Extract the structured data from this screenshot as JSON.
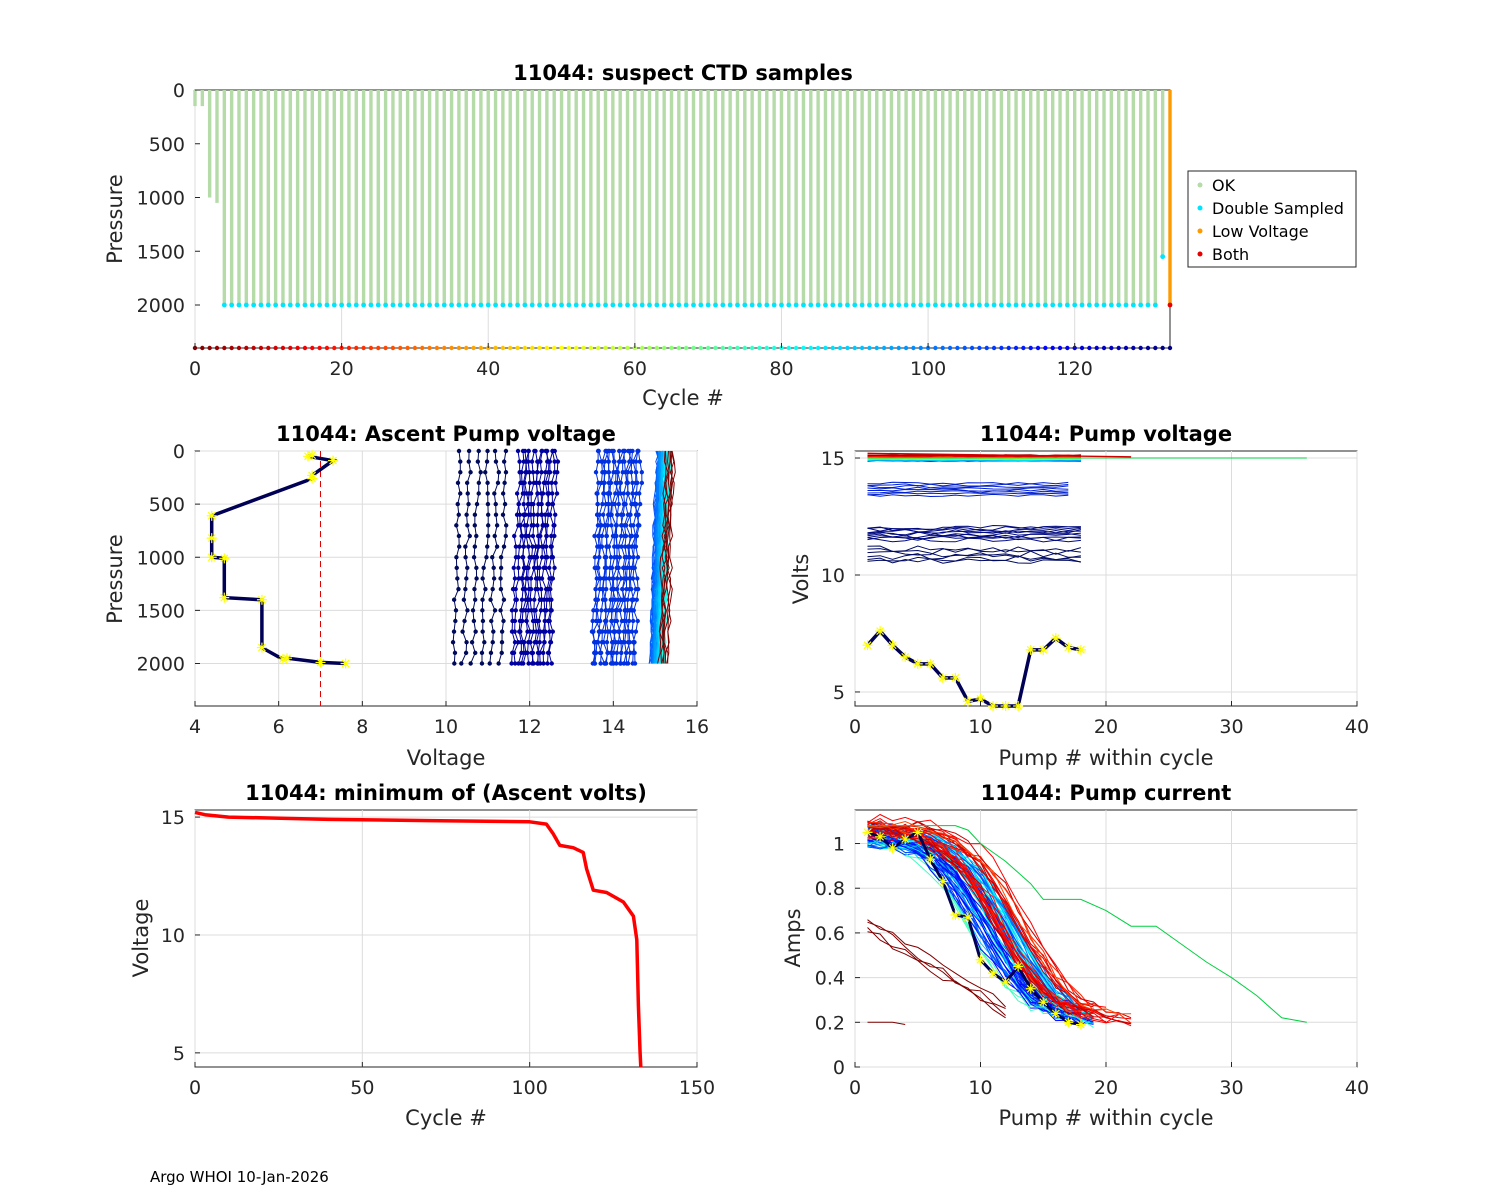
{
  "footer": "Argo WHOI 10-Jan-2026",
  "colors": {
    "ok": "#b5dba9",
    "double": "#00e5ff",
    "low": "#ff9900",
    "both": "#e60000",
    "min_line": "#ff0000",
    "star": "#ffff00",
    "dark": "#000055"
  },
  "chart_data": [
    {
      "id": "suspect",
      "type": "scatter",
      "title": "11044: suspect CTD samples",
      "xlabel": "Cycle #",
      "ylabel": "Pressure",
      "xlim": [
        0,
        133
      ],
      "ylim": [
        2400,
        0
      ],
      "xticks": [
        "0",
        "20",
        "40",
        "60",
        "80",
        "100",
        "120"
      ],
      "xtick_values": [
        0,
        20,
        40,
        60,
        80,
        100,
        120
      ],
      "yticks": [
        "0",
        "500",
        "1000",
        "1500",
        "2000"
      ],
      "ytick_values": [
        0,
        500,
        1000,
        1500,
        2000
      ],
      "legend": [
        "OK",
        "Double Sampled",
        "Low Voltage",
        "Both"
      ],
      "cycles": 133,
      "profile_depth": 2000,
      "early_profiles": [
        {
          "cycle": 1,
          "depth": 150
        },
        {
          "cycle": 2,
          "depth": 1000
        },
        {
          "cycle": 3,
          "depth": 1050
        }
      ],
      "double_sampled_depth": 2000,
      "last_cycle": {
        "cycle": 132,
        "ok_depth": 1550,
        "double_depth": 1550
      },
      "low_voltage_cycle": {
        "cycle": 133,
        "top": 0,
        "bottom": 2000,
        "both_depth": 2000
      },
      "cycle_marker_depth": 2400
    },
    {
      "id": "ascent",
      "type": "line",
      "title": "11044: Ascent Pump voltage",
      "xlabel": "Voltage",
      "ylabel": "Pressure",
      "xlim": [
        4,
        16
      ],
      "ylim": [
        2400,
        0
      ],
      "xticks": [
        "4",
        "6",
        "8",
        "10",
        "12",
        "14",
        "16"
      ],
      "xtick_values": [
        4,
        6,
        8,
        10,
        12,
        14,
        16
      ],
      "yticks": [
        "0",
        "500",
        "1000",
        "1500",
        "2000"
      ],
      "ytick_values": [
        0,
        500,
        1000,
        1500,
        2000
      ],
      "threshold_voltage": 7,
      "last_profile": [
        [
          7.6,
          2000
        ],
        [
          7.0,
          1990
        ],
        [
          6.2,
          1950
        ],
        [
          6.1,
          1960
        ],
        [
          5.6,
          1850
        ],
        [
          5.6,
          1400
        ],
        [
          4.7,
          1380
        ],
        [
          4.7,
          1010
        ],
        [
          4.4,
          1000
        ],
        [
          4.4,
          820
        ],
        [
          4.4,
          610
        ],
        [
          6.8,
          260
        ],
        [
          6.8,
          230
        ],
        [
          7.3,
          90
        ],
        [
          6.7,
          50
        ],
        [
          6.8,
          40
        ]
      ],
      "profile_groups": [
        {
          "base": 10.2,
          "spread": 1.1,
          "count": 6,
          "color": "#000a5a"
        },
        {
          "base": 11.6,
          "spread": 0.9,
          "count": 14,
          "color": "#0000a0"
        },
        {
          "base": 13.5,
          "spread": 1.0,
          "count": 18,
          "color": "#0030e0"
        },
        {
          "base": 14.9,
          "spread": 0.3,
          "count": 60,
          "color": "#0090ff"
        },
        {
          "base": 15.1,
          "spread": 0.2,
          "count": 8,
          "color": "#7f0000"
        }
      ]
    },
    {
      "id": "pumpvolt",
      "type": "line",
      "title": "11044: Pump voltage",
      "xlabel": "Pump # within cycle",
      "ylabel": "Volts",
      "xlim": [
        0,
        40
      ],
      "ylim": [
        4.4,
        15.3
      ],
      "xticks": [
        "0",
        "10",
        "20",
        "30",
        "40"
      ],
      "xtick_values": [
        0,
        10,
        20,
        30,
        40
      ],
      "yticks": [
        "5",
        "10",
        "15"
      ],
      "ytick_values": [
        5,
        10,
        15
      ],
      "last_cycle": [
        [
          1,
          7.0
        ],
        [
          2,
          7.6
        ],
        [
          3,
          7.0
        ],
        [
          4,
          6.5
        ],
        [
          5,
          6.2
        ],
        [
          6,
          6.2
        ],
        [
          7,
          5.6
        ],
        [
          8,
          5.6
        ],
        [
          9,
          4.6
        ],
        [
          10,
          4.7
        ],
        [
          11,
          4.4
        ],
        [
          12,
          4.4
        ],
        [
          13,
          4.4
        ],
        [
          14,
          6.8
        ],
        [
          15,
          6.8
        ],
        [
          16,
          7.3
        ],
        [
          17,
          6.9
        ],
        [
          18,
          6.8
        ]
      ],
      "band_levels": [
        15.0,
        13.7,
        11.8,
        10.6
      ],
      "long_line": {
        "x_end": 36,
        "value": 15.0
      }
    },
    {
      "id": "minvolt",
      "type": "line",
      "title": "11044: minimum of (Ascent volts)",
      "xlabel": "Cycle #",
      "ylabel": "Voltage",
      "xlim": [
        0,
        150
      ],
      "ylim": [
        4.4,
        15.3
      ],
      "xticks": [
        "0",
        "50",
        "100",
        "150"
      ],
      "xtick_values": [
        0,
        50,
        100,
        150
      ],
      "yticks": [
        "5",
        "10",
        "15"
      ],
      "ytick_values": [
        5,
        10,
        15
      ],
      "points": [
        [
          0,
          15.2
        ],
        [
          3,
          15.1
        ],
        [
          10,
          15.0
        ],
        [
          40,
          14.9
        ],
        [
          70,
          14.85
        ],
        [
          100,
          14.8
        ],
        [
          105,
          14.7
        ],
        [
          107,
          14.3
        ],
        [
          109,
          13.8
        ],
        [
          113,
          13.7
        ],
        [
          116,
          13.5
        ],
        [
          117,
          12.8
        ],
        [
          119,
          11.9
        ],
        [
          123,
          11.8
        ],
        [
          128,
          11.4
        ],
        [
          131,
          10.8
        ],
        [
          132,
          9.8
        ],
        [
          132.5,
          7.0
        ],
        [
          133,
          5.0
        ],
        [
          133.2,
          4.4
        ]
      ]
    },
    {
      "id": "pumpcur",
      "type": "line",
      "title": "11044: Pump current",
      "xlabel": "Pump # within cycle",
      "ylabel": "Amps",
      "xlim": [
        0,
        40
      ],
      "ylim": [
        0,
        1.15
      ],
      "xticks": [
        "0",
        "10",
        "20",
        "30",
        "40"
      ],
      "xtick_values": [
        0,
        10,
        20,
        30,
        40
      ],
      "yticks": [
        "0",
        "0.2",
        "0.4",
        "0.6",
        "0.8",
        "1"
      ],
      "ytick_values": [
        0,
        0.2,
        0.4,
        0.6,
        0.8,
        1
      ],
      "last_cycle": [
        [
          1,
          1.05
        ],
        [
          2,
          1.03
        ],
        [
          3,
          0.98
        ],
        [
          4,
          1.02
        ],
        [
          5,
          1.05
        ],
        [
          6,
          0.93
        ],
        [
          7,
          0.83
        ],
        [
          8,
          0.68
        ],
        [
          9,
          0.67
        ],
        [
          10,
          0.48
        ],
        [
          11,
          0.42
        ],
        [
          12,
          0.38
        ],
        [
          13,
          0.45
        ],
        [
          14,
          0.35
        ],
        [
          15,
          0.29
        ],
        [
          16,
          0.24
        ],
        [
          17,
          0.2
        ],
        [
          18,
          0.19
        ]
      ],
      "green_outlier": [
        [
          1,
          1.08
        ],
        [
          5,
          1.08
        ],
        [
          7,
          1.08
        ],
        [
          8,
          1.08
        ],
        [
          9,
          1.06
        ],
        [
          10,
          1.0
        ],
        [
          12,
          0.92
        ],
        [
          14,
          0.82
        ],
        [
          15,
          0.75
        ],
        [
          18,
          0.75
        ],
        [
          20,
          0.7
        ],
        [
          22,
          0.63
        ],
        [
          24,
          0.63
        ],
        [
          26,
          0.55
        ],
        [
          28,
          0.47
        ],
        [
          30,
          0.4
        ],
        [
          32,
          0.32
        ],
        [
          34,
          0.22
        ],
        [
          36,
          0.2
        ]
      ],
      "low_line": [
        [
          1,
          0.2
        ],
        [
          3,
          0.2
        ],
        [
          4,
          0.19
        ]
      ]
    }
  ]
}
